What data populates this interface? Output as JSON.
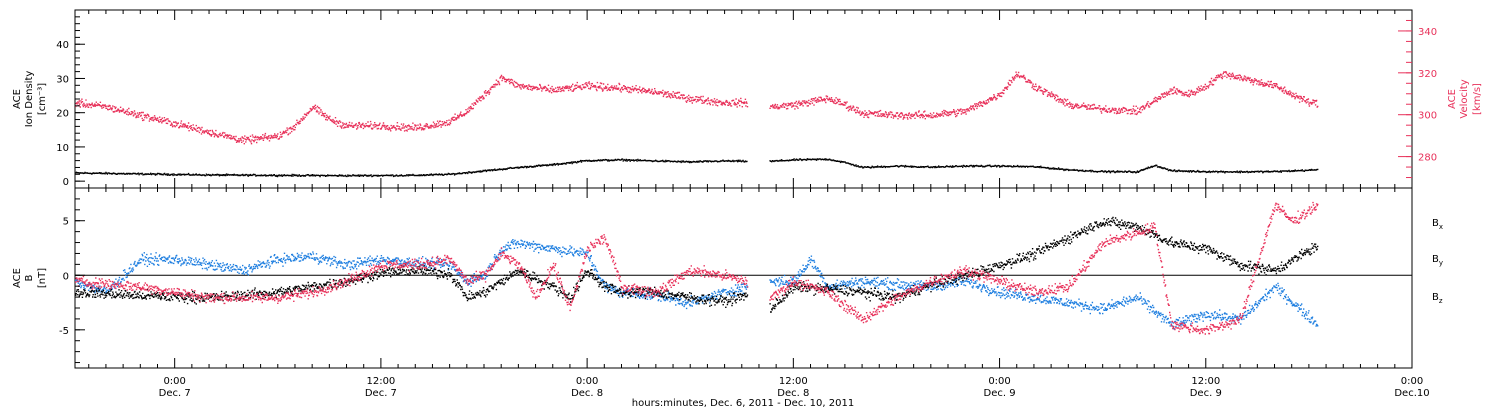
{
  "figure": {
    "bottom_caption": "hours:minutes, Dec. 6, 2011 - Dec. 10, 2011"
  },
  "colors": {
    "black": "#000000",
    "magenta": "#e8315a",
    "blue": "#1f7fe0"
  },
  "time_axis": {
    "ticks": [
      {
        "time": "Dec. 7 00:00",
        "hours": 24,
        "label": "0:00",
        "date": "Dec. 7"
      },
      {
        "time": "Dec. 7 12:00",
        "hours": 36,
        "label": "12:00",
        "date": "Dec. 7"
      },
      {
        "time": "Dec. 8 00:00",
        "hours": 48,
        "label": "0:00",
        "date": "Dec. 8"
      },
      {
        "time": "Dec. 8 12:00",
        "hours": 60,
        "label": "12:00",
        "date": "Dec. 8"
      },
      {
        "time": "Dec. 9 00:00",
        "hours": 72,
        "label": "0:00",
        "date": "Dec. 9"
      },
      {
        "time": "Dec. 9 12:00",
        "hours": 84,
        "label": "12:00",
        "date": "Dec. 9"
      },
      {
        "time": "Dec. 10 00:00",
        "hours": 96,
        "label": "0:00",
        "date": "Dec.10"
      }
    ]
  },
  "chart_data": [
    {
      "type": "scatter",
      "panel": "top",
      "ylabel_lines": [
        "ACE",
        "Ion Density",
        "[cm⁻³]"
      ],
      "ylabel_right_lines": [
        "ACE",
        "Velocity",
        "[km/s]"
      ],
      "x_range_hours": [
        18.2,
        96
      ],
      "ylim_left": [
        -2,
        50
      ],
      "yticks_left": [
        0,
        10,
        20,
        30,
        40
      ],
      "ylim_right": [
        265,
        350
      ],
      "yticks_right": [
        280,
        300,
        320,
        340
      ],
      "series": [
        {
          "color": "#000000",
          "axis": "left",
          "keypoints": [
            [
              18.2,
              2.6
            ],
            [
              22,
              2.3
            ],
            [
              26,
              2.0
            ],
            [
              30,
              1.9
            ],
            [
              34,
              1.8
            ],
            [
              38,
              1.9
            ],
            [
              40,
              2.2
            ],
            [
              42,
              3.2
            ],
            [
              44,
              4.2
            ],
            [
              46,
              5.0
            ],
            [
              48,
              6.2
            ],
            [
              50,
              6.4
            ],
            [
              52,
              6.1
            ],
            [
              54,
              5.8
            ],
            [
              56,
              6.1
            ],
            [
              57.2,
              6.0
            ],
            [
              58.7,
              6.0
            ],
            [
              60,
              6.4
            ],
            [
              62,
              6.6
            ],
            [
              63,
              5.6
            ],
            [
              64,
              4.2
            ],
            [
              66,
              4.6
            ],
            [
              68,
              4.3
            ],
            [
              70,
              4.6
            ],
            [
              72,
              4.6
            ],
            [
              74,
              4.4
            ],
            [
              76,
              3.5
            ],
            [
              78,
              3.0
            ],
            [
              80,
              2.9
            ],
            [
              81,
              4.8
            ],
            [
              82,
              3.2
            ],
            [
              84,
              3.0
            ],
            [
              86,
              2.9
            ],
            [
              88,
              3.0
            ],
            [
              90.5,
              3.5
            ]
          ],
          "gaps_hours": [
            [
              57.3,
              58.6
            ]
          ]
        },
        {
          "color": "#e8315a",
          "axis": "right",
          "keypoints": [
            [
              18.2,
              306
            ],
            [
              20,
              304
            ],
            [
              22,
              300
            ],
            [
              24,
              296
            ],
            [
              26,
              292
            ],
            [
              28,
              288
            ],
            [
              30,
              290
            ],
            [
              31,
              295
            ],
            [
              32,
              304
            ],
            [
              33,
              298
            ],
            [
              34,
              295
            ],
            [
              36,
              295
            ],
            [
              38,
              294
            ],
            [
              40,
              297
            ],
            [
              41,
              302
            ],
            [
              42,
              310
            ],
            [
              43,
              318
            ],
            [
              44,
              314
            ],
            [
              46,
              312
            ],
            [
              48,
              314
            ],
            [
              50,
              313
            ],
            [
              52,
              311
            ],
            [
              54,
              308
            ],
            [
              56,
              306
            ],
            [
              57.2,
              306
            ],
            [
              58.7,
              304
            ],
            [
              60,
              305
            ],
            [
              62,
              308
            ],
            [
              63,
              305
            ],
            [
              64,
              301
            ],
            [
              66,
              300
            ],
            [
              68,
              300
            ],
            [
              70,
              302
            ],
            [
              72,
              310
            ],
            [
              73,
              320
            ],
            [
              74,
              314
            ],
            [
              76,
              305
            ],
            [
              78,
              303
            ],
            [
              80,
              302
            ],
            [
              81,
              307
            ],
            [
              82,
              312
            ],
            [
              83,
              310
            ],
            [
              84,
              314
            ],
            [
              85,
              320
            ],
            [
              86,
              318
            ],
            [
              88,
              314
            ],
            [
              90,
              306
            ],
            [
              90.5,
              306
            ]
          ],
          "gaps_hours": [
            [
              57.3,
              58.6
            ]
          ]
        }
      ]
    },
    {
      "type": "scatter",
      "panel": "bottom",
      "ylabel_lines": [
        "ACE",
        "B",
        "[nT]"
      ],
      "x_range_hours": [
        18.2,
        96
      ],
      "ylim": [
        -8.5,
        8
      ],
      "yticks": [
        -5,
        0,
        5
      ],
      "zero_line": true,
      "legend": [
        {
          "label": "B",
          "sub": "x",
          "color": "#000000"
        },
        {
          "label": "B",
          "sub": "y",
          "color": "#1f7fe0"
        },
        {
          "label": "B",
          "sub": "z",
          "color": "#e8315a"
        }
      ],
      "series": [
        {
          "name": "Bx",
          "color": "#000000",
          "keypoints": [
            [
              18.2,
              -1.5
            ],
            [
              22,
              -1.8
            ],
            [
              26,
              -2.0
            ],
            [
              30,
              -1.5
            ],
            [
              34,
              -0.5
            ],
            [
              36,
              0.3
            ],
            [
              38,
              0.5
            ],
            [
              40,
              0.2
            ],
            [
              41,
              -2.0
            ],
            [
              42,
              -1.5
            ],
            [
              43,
              -0.5
            ],
            [
              44,
              0.5
            ],
            [
              46,
              -1.0
            ],
            [
              47,
              -2.0
            ],
            [
              48,
              0.5
            ],
            [
              49,
              -1.0
            ],
            [
              50,
              -1.5
            ],
            [
              52,
              -1.5
            ],
            [
              54,
              -2.0
            ],
            [
              56,
              -2.3
            ],
            [
              57.2,
              -1.8
            ],
            [
              58.7,
              -3.0
            ],
            [
              60,
              -1.0
            ],
            [
              62,
              -1.2
            ],
            [
              64,
              -1.5
            ],
            [
              66,
              -2.0
            ],
            [
              68,
              -0.8
            ],
            [
              70,
              0.0
            ],
            [
              72,
              1.0
            ],
            [
              74,
              2.0
            ],
            [
              76,
              3.5
            ],
            [
              78,
              5.0
            ],
            [
              80,
              4.5
            ],
            [
              82,
              3.0
            ],
            [
              84,
              2.5
            ],
            [
              86,
              1.0
            ],
            [
              88,
              0.5
            ],
            [
              90.5,
              2.8
            ]
          ],
          "gaps_hours": [
            [
              57.3,
              58.6
            ]
          ]
        },
        {
          "name": "By",
          "color": "#1f7fe0",
          "keypoints": [
            [
              18.2,
              -0.5
            ],
            [
              20,
              -1.5
            ],
            [
              22,
              1.5
            ],
            [
              24,
              1.5
            ],
            [
              26,
              1.0
            ],
            [
              28,
              0.5
            ],
            [
              30,
              1.5
            ],
            [
              32,
              1.8
            ],
            [
              34,
              1.0
            ],
            [
              36,
              1.5
            ],
            [
              38,
              1.2
            ],
            [
              40,
              1.0
            ],
            [
              41,
              -0.5
            ],
            [
              42,
              0.0
            ],
            [
              43,
              2.5
            ],
            [
              44,
              3.0
            ],
            [
              46,
              2.5
            ],
            [
              48,
              2.0
            ],
            [
              49,
              -1.0
            ],
            [
              50,
              -1.5
            ],
            [
              52,
              -1.8
            ],
            [
              54,
              -2.5
            ],
            [
              56,
              -1.5
            ],
            [
              57.2,
              -1.0
            ],
            [
              58.7,
              -0.5
            ],
            [
              60,
              -0.5
            ],
            [
              61,
              1.5
            ],
            [
              62,
              -1.0
            ],
            [
              64,
              -0.5
            ],
            [
              66,
              -0.8
            ],
            [
              68,
              -1.0
            ],
            [
              70,
              -0.5
            ],
            [
              72,
              -1.5
            ],
            [
              74,
              -2.0
            ],
            [
              76,
              -2.5
            ],
            [
              78,
              -3.0
            ],
            [
              80,
              -2.0
            ],
            [
              82,
              -4.5
            ],
            [
              84,
              -3.5
            ],
            [
              86,
              -4.0
            ],
            [
              88,
              -1.0
            ],
            [
              90.5,
              -4.5
            ]
          ],
          "gaps_hours": [
            [
              57.3,
              58.6
            ]
          ]
        },
        {
          "name": "Bz",
          "color": "#e8315a",
          "keypoints": [
            [
              18.2,
              -0.5
            ],
            [
              22,
              -1.0
            ],
            [
              26,
              -2.0
            ],
            [
              30,
              -2.0
            ],
            [
              32,
              -1.5
            ],
            [
              34,
              -0.5
            ],
            [
              36,
              1.0
            ],
            [
              38,
              1.0
            ],
            [
              40,
              1.5
            ],
            [
              41,
              -0.5
            ],
            [
              42,
              0.0
            ],
            [
              43,
              2.0
            ],
            [
              44,
              1.0
            ],
            [
              45,
              -2.0
            ],
            [
              46,
              1.0
            ],
            [
              47,
              -3.0
            ],
            [
              48,
              2.5
            ],
            [
              49,
              3.5
            ],
            [
              50,
              -1.0
            ],
            [
              52,
              -1.5
            ],
            [
              54,
              0.5
            ],
            [
              56,
              0.0
            ],
            [
              57.2,
              -0.5
            ],
            [
              58.7,
              -2.0
            ],
            [
              60,
              -0.5
            ],
            [
              62,
              -1.5
            ],
            [
              64,
              -4.0
            ],
            [
              66,
              -2.0
            ],
            [
              68,
              -0.5
            ],
            [
              70,
              0.5
            ],
            [
              72,
              -0.5
            ],
            [
              74,
              -1.5
            ],
            [
              76,
              -1.0
            ],
            [
              78,
              3.0
            ],
            [
              80,
              4.0
            ],
            [
              81,
              4.5
            ],
            [
              82,
              -4.5
            ],
            [
              84,
              -5.0
            ],
            [
              86,
              -4.0
            ],
            [
              88,
              6.5
            ],
            [
              89,
              5.0
            ],
            [
              90.5,
              6.5
            ]
          ],
          "gaps_hours": [
            [
              57.3,
              58.6
            ]
          ]
        }
      ]
    }
  ]
}
